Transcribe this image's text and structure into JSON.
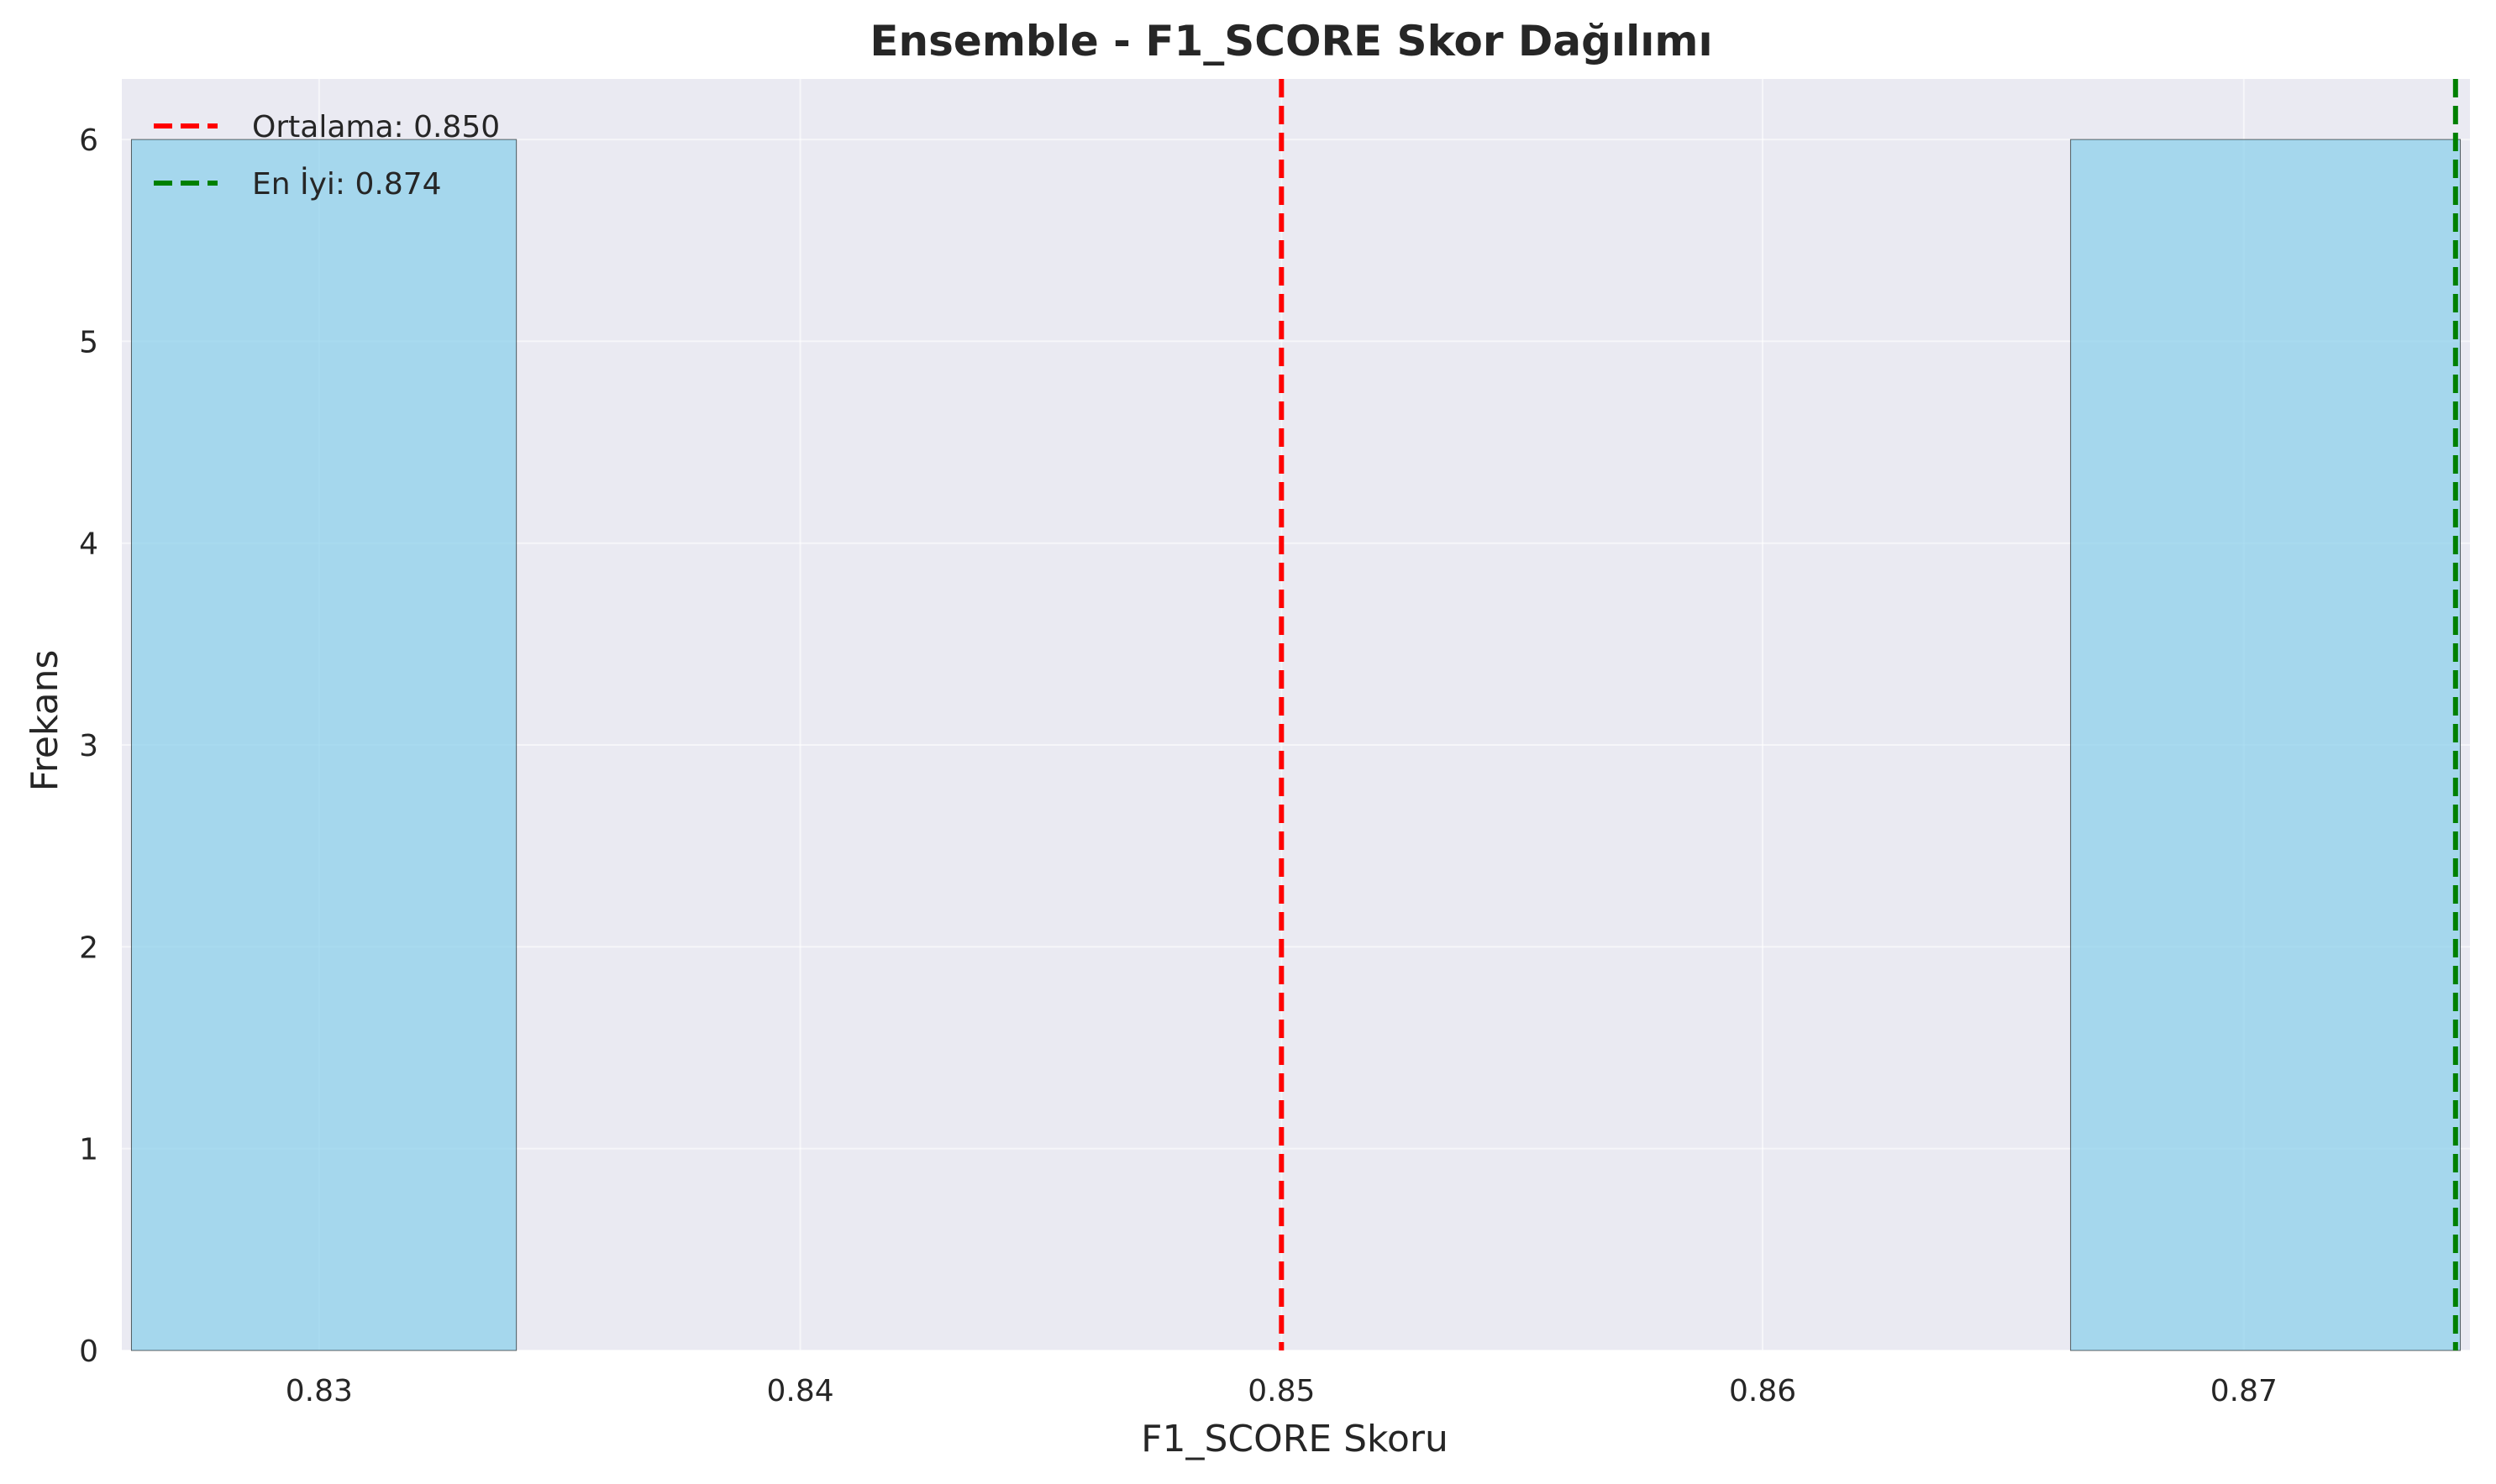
{
  "chart_data": {
    "type": "bar",
    "title": "Ensemble - F1_SCORE Skor Dağılımı",
    "xlabel": "F1_SCORE Skoru",
    "ylabel": "Frekans",
    "xlim": [
      0.8259,
      0.8747
    ],
    "ylim": [
      0,
      6.3
    ],
    "xticks": [
      "0.83",
      "0.84",
      "0.85",
      "0.86",
      "0.87"
    ],
    "xtick_values": [
      0.83,
      0.84,
      0.85,
      0.86,
      0.87
    ],
    "yticks": [
      "0",
      "1",
      "2",
      "3",
      "4",
      "5",
      "6"
    ],
    "ytick_values": [
      0,
      1,
      2,
      3,
      4,
      5,
      6
    ],
    "grid": true,
    "bins": [
      {
        "start": 0.8261,
        "end": 0.8341,
        "count": 6
      },
      {
        "start": 0.8341,
        "end": 0.8422,
        "count": 0
      },
      {
        "start": 0.8422,
        "end": 0.8503,
        "count": 0
      },
      {
        "start": 0.8503,
        "end": 0.8584,
        "count": 0
      },
      {
        "start": 0.8584,
        "end": 0.8664,
        "count": 0
      },
      {
        "start": 0.8664,
        "end": 0.8745,
        "count": 6
      }
    ],
    "bar_color": "#87ceeb",
    "vlines": [
      {
        "x": 0.85,
        "color": "#ff0000",
        "label": "Ortalama: 0.850"
      },
      {
        "x": 0.8744,
        "color": "#008000",
        "label": "En İyi: 0.874"
      }
    ],
    "legend_position": "top-left"
  }
}
